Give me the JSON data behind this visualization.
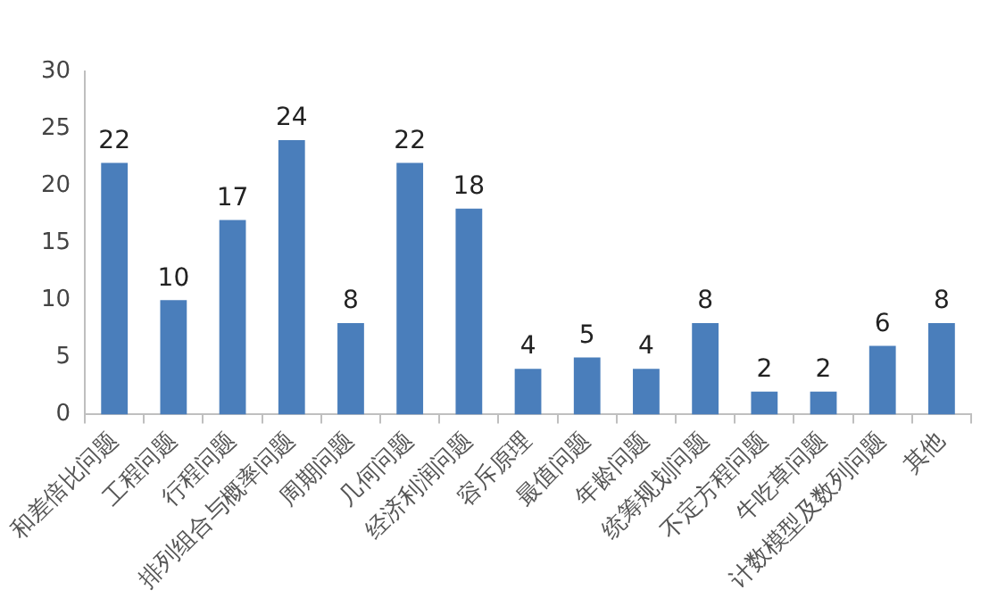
{
  "chart_data": {
    "type": "bar",
    "categories": [
      "和差倍比问题",
      "工程问题",
      "行程问题",
      "排列组合与概率问题",
      "周期问题",
      "几何问题",
      "经济利润问题",
      "容斥原理",
      "最值问题",
      "年龄问题",
      "统筹规划问题",
      "不定方程问题",
      "牛吃草问题",
      "计数模型及数列问题",
      "其他"
    ],
    "values": [
      22,
      10,
      17,
      24,
      8,
      22,
      18,
      4,
      5,
      4,
      8,
      2,
      2,
      6,
      8
    ],
    "color": "#4a7ebb",
    "ylim": [
      0,
      30
    ],
    "yticks": [
      0,
      5,
      10,
      15,
      20,
      25,
      30
    ],
    "grid": false,
    "legend": false,
    "data_labels": true
  }
}
